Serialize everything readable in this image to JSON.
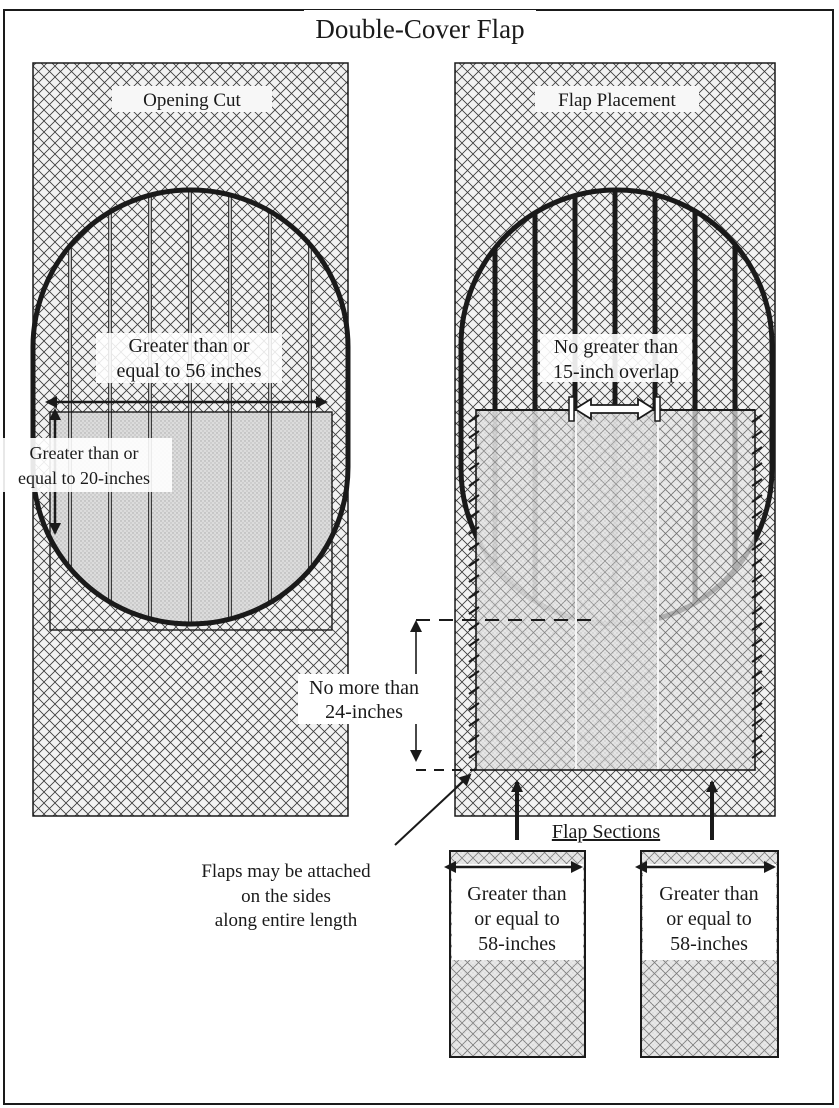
{
  "title": "Double-Cover Flap",
  "left_panel": {
    "heading": "Opening Cut",
    "width_label": [
      "Greater than or",
      "equal to 56 inches"
    ],
    "height_label": [
      "Greater than or",
      "equal to 20-inches"
    ]
  },
  "right_panel": {
    "heading": "Flap Placement",
    "overlap_label": [
      "No greater than",
      "15-inch overlap"
    ],
    "length_label": [
      "No more than",
      "24-inches"
    ],
    "attach_note": [
      "Flaps may be attached",
      "on the sides",
      "along entire length"
    ]
  },
  "flap_sections": {
    "label": "Flap Sections",
    "items": [
      {
        "width_label": [
          "Greater than",
          "or equal to",
          "58-inches"
        ]
      },
      {
        "width_label": [
          "Greater than",
          "or equal to",
          "58-inches"
        ]
      }
    ]
  },
  "colors": {
    "line": "#1a1a1a",
    "mesh": "#3a3a3a",
    "panel": "#f2f2f2",
    "flap_fill": "#d9d9d9"
  }
}
